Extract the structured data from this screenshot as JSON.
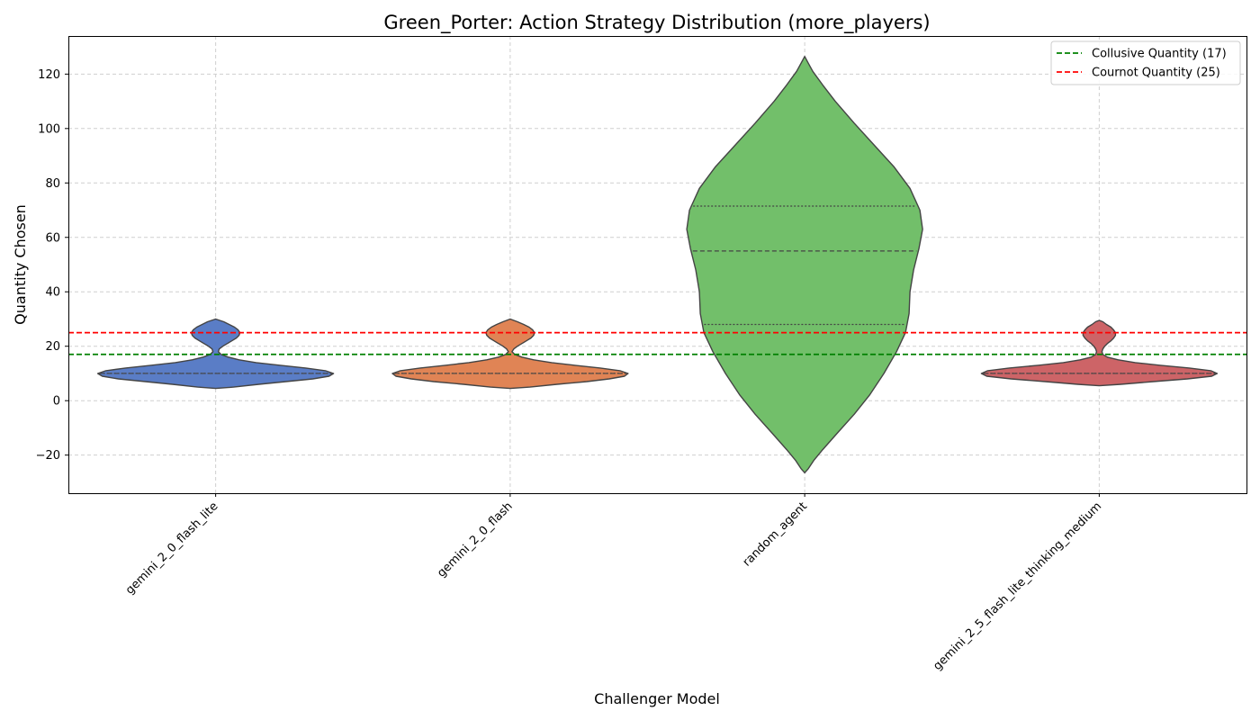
{
  "chart_data": {
    "type": "violin",
    "title": "Green_Porter: Action Strategy Distribution (more_players)",
    "xlabel": "Challenger Model",
    "ylabel": "Quantity Chosen",
    "ylim": [
      -34,
      134
    ],
    "yticks": [
      -20,
      0,
      20,
      40,
      60,
      80,
      100,
      120
    ],
    "grid": true,
    "legend_position": "top-right",
    "categories": [
      "gemini_2_0_flash_lite",
      "gemini_2_0_flash",
      "random_agent",
      "gemini_2_5_flash_lite_thinking_medium"
    ],
    "series": [
      {
        "category": "gemini_2_0_flash_lite",
        "color": "#5a7dc6",
        "range": [
          4.5,
          30
        ],
        "quartiles": [
          10,
          10,
          10
        ],
        "profile": [
          [
            4.5,
            0
          ],
          [
            5,
            20
          ],
          [
            6,
            48
          ],
          [
            7,
            78
          ],
          [
            8,
            108
          ],
          [
            9,
            126
          ],
          [
            10,
            131
          ],
          [
            11,
            122
          ],
          [
            12,
            100
          ],
          [
            13,
            72
          ],
          [
            14,
            45
          ],
          [
            15,
            26
          ],
          [
            16,
            14
          ],
          [
            17,
            6
          ],
          [
            18,
            3
          ],
          [
            19,
            4
          ],
          [
            20,
            8
          ],
          [
            21,
            13
          ],
          [
            22,
            18
          ],
          [
            23,
            23
          ],
          [
            24,
            26
          ],
          [
            25,
            27
          ],
          [
            26,
            25
          ],
          [
            27,
            21
          ],
          [
            28,
            15
          ],
          [
            29,
            9
          ],
          [
            30,
            0
          ]
        ]
      },
      {
        "category": "gemini_2_0_flash",
        "color": "#e08455",
        "range": [
          4.5,
          30
        ],
        "quartiles": [
          10,
          10,
          10
        ],
        "profile": [
          [
            4.5,
            0
          ],
          [
            5,
            22
          ],
          [
            6,
            52
          ],
          [
            7,
            85
          ],
          [
            8,
            110
          ],
          [
            9,
            127
          ],
          [
            10,
            131
          ],
          [
            11,
            122
          ],
          [
            12,
            100
          ],
          [
            13,
            72
          ],
          [
            14,
            46
          ],
          [
            15,
            26
          ],
          [
            16,
            13
          ],
          [
            17,
            5
          ],
          [
            18,
            2
          ],
          [
            19,
            4
          ],
          [
            20,
            8
          ],
          [
            21,
            13
          ],
          [
            22,
            18
          ],
          [
            23,
            23
          ],
          [
            24,
            26
          ],
          [
            25,
            27
          ],
          [
            26,
            25
          ],
          [
            27,
            21
          ],
          [
            28,
            15
          ],
          [
            29,
            8
          ],
          [
            30,
            0
          ]
        ]
      },
      {
        "category": "random_agent",
        "color": "#72bf6a",
        "range": [
          -26.5,
          126.5
        ],
        "quartiles": [
          28,
          55,
          71.5
        ],
        "profile": [
          [
            -26.5,
            0
          ],
          [
            -25,
            4
          ],
          [
            -22,
            10
          ],
          [
            -18,
            20
          ],
          [
            -12,
            36
          ],
          [
            -5,
            55
          ],
          [
            2,
            72
          ],
          [
            10,
            88
          ],
          [
            18,
            102
          ],
          [
            25,
            112
          ],
          [
            32,
            116
          ],
          [
            40,
            117
          ],
          [
            48,
            121
          ],
          [
            56,
            127
          ],
          [
            63,
            131
          ],
          [
            70,
            128
          ],
          [
            78,
            117
          ],
          [
            86,
            99
          ],
          [
            94,
            77
          ],
          [
            102,
            55
          ],
          [
            110,
            34
          ],
          [
            116,
            20
          ],
          [
            121,
            9
          ],
          [
            124,
            4
          ],
          [
            126.5,
            0
          ]
        ]
      },
      {
        "category": "gemini_2_5_flash_lite_thinking_medium",
        "color": "#cd6467",
        "range": [
          5.5,
          29.5
        ],
        "quartiles": [
          10,
          10,
          10
        ],
        "profile": [
          [
            5.5,
            0
          ],
          [
            6,
            24
          ],
          [
            7,
            60
          ],
          [
            8,
            98
          ],
          [
            9,
            125
          ],
          [
            10,
            131
          ],
          [
            11,
            124
          ],
          [
            12,
            100
          ],
          [
            13,
            68
          ],
          [
            14,
            40
          ],
          [
            15,
            21
          ],
          [
            16,
            9
          ],
          [
            17,
            4
          ],
          [
            18,
            3
          ],
          [
            19,
            4
          ],
          [
            20,
            6
          ],
          [
            21,
            9
          ],
          [
            22,
            13
          ],
          [
            23,
            16
          ],
          [
            24,
            18
          ],
          [
            25,
            18
          ],
          [
            26,
            16
          ],
          [
            27,
            13
          ],
          [
            28,
            8
          ],
          [
            29,
            4
          ],
          [
            29.5,
            0
          ]
        ]
      }
    ],
    "reference_lines": [
      {
        "label": "Collusive Quantity (17)",
        "value": 17,
        "color": "#008000",
        "style": "dashed"
      },
      {
        "label": "Cournot Quantity (25)",
        "value": 25,
        "color": "#ff0000",
        "style": "dashed"
      }
    ]
  }
}
